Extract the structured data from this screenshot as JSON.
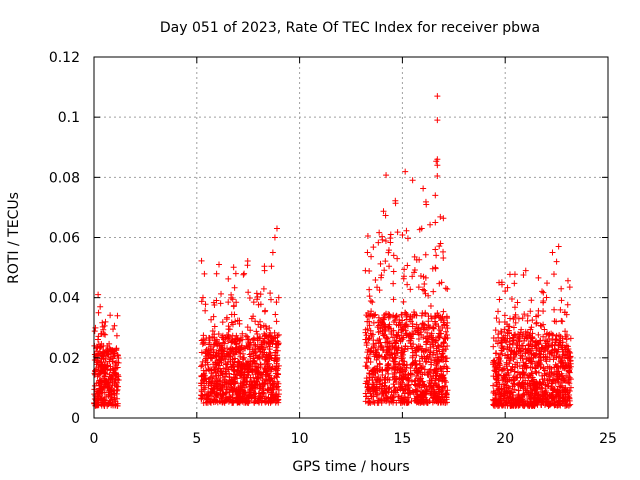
{
  "chart_data": {
    "type": "scatter",
    "title": "Day 051 of 2023, Rate Of TEC Index for receiver pbwa",
    "xlabel": "GPS time / hours",
    "ylabel": "ROTI / TECUs",
    "xlim": [
      0,
      25
    ],
    "ylim": [
      0,
      0.12
    ],
    "xticks": [
      "0",
      "5",
      "10",
      "15",
      "20",
      "25"
    ],
    "yticks": [
      "0",
      "0.02",
      "0.04",
      "0.06",
      "0.08",
      "0.1",
      "0.12"
    ],
    "grid": true,
    "marker": "plus",
    "color": "#ff0000",
    "segments": [
      {
        "x_start": 0.0,
        "x_end": 1.2,
        "y_low": 0.004,
        "y_high": 0.024,
        "y_peak": 0.041
      },
      {
        "x_start": 5.2,
        "x_end": 9.0,
        "y_low": 0.005,
        "y_high": 0.028,
        "y_peak": 0.063
      },
      {
        "x_start": 13.2,
        "x_end": 17.2,
        "y_low": 0.005,
        "y_high": 0.035,
        "y_peak": 0.107
      },
      {
        "x_start": 19.4,
        "x_end": 23.2,
        "y_low": 0.004,
        "y_high": 0.028,
        "y_peak": 0.057
      }
    ],
    "notable_points": [
      {
        "x": 16.7,
        "y": 0.107
      },
      {
        "x": 16.7,
        "y": 0.099
      },
      {
        "x": 16.7,
        "y": 0.086
      },
      {
        "x": 16.7,
        "y": 0.084
      },
      {
        "x": 16.6,
        "y": 0.074
      },
      {
        "x": 16.6,
        "y": 0.065
      },
      {
        "x": 16.6,
        "y": 0.056
      },
      {
        "x": 16.6,
        "y": 0.05
      },
      {
        "x": 16.5,
        "y": 0.042
      },
      {
        "x": 13.3,
        "y": 0.055
      },
      {
        "x": 13.2,
        "y": 0.049
      },
      {
        "x": 8.9,
        "y": 0.063
      },
      {
        "x": 8.8,
        "y": 0.06
      },
      {
        "x": 8.7,
        "y": 0.055
      },
      {
        "x": 6.9,
        "y": 0.048
      },
      {
        "x": 7.3,
        "y": 0.048
      },
      {
        "x": 22.6,
        "y": 0.057
      },
      {
        "x": 22.3,
        "y": 0.055
      },
      {
        "x": 22.5,
        "y": 0.052
      },
      {
        "x": 21.0,
        "y": 0.049
      },
      {
        "x": 19.7,
        "y": 0.045
      },
      {
        "x": 0.2,
        "y": 0.041
      },
      {
        "x": 0.3,
        "y": 0.037
      },
      {
        "x": 5.3,
        "y": 0.04
      }
    ]
  }
}
